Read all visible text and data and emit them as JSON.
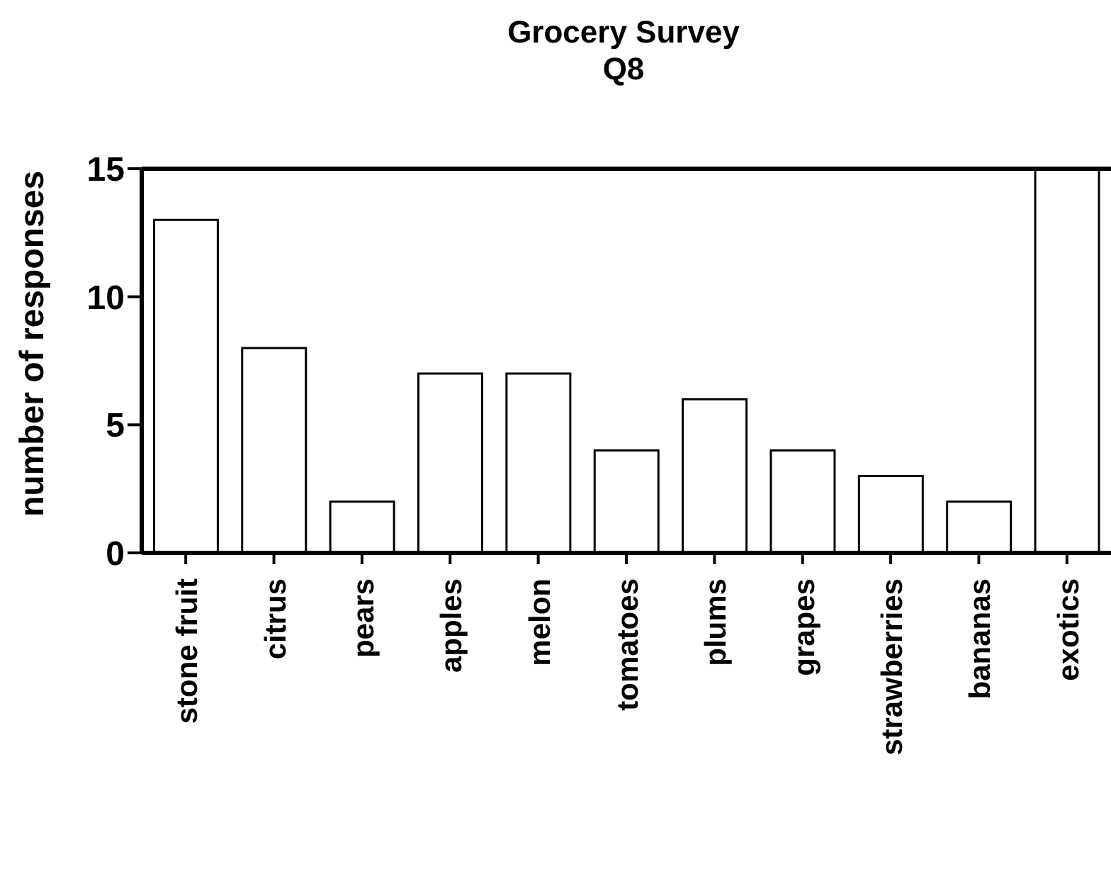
{
  "chart_data": {
    "type": "bar",
    "title": "Grocery Survey\nQ8",
    "ylabel": "number of responses",
    "categories": [
      "stone fruit",
      "citrus",
      "pears",
      "apples",
      "melon",
      "tomatoes",
      "plums",
      "grapes",
      "strawberries",
      "bananas",
      "exotics"
    ],
    "values": [
      13,
      8,
      2,
      7,
      7,
      4,
      6,
      4,
      3,
      2,
      15
    ],
    "color": "#ffffff",
    "ylim": [
      0,
      15
    ],
    "yticks": [
      0,
      5,
      10,
      15
    ],
    "grid": false,
    "legend": false
  }
}
